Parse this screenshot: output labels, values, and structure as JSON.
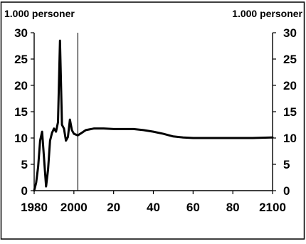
{
  "chart_data": {
    "type": "line",
    "title": "",
    "y_unit_left": "1.000 personer",
    "y_unit_right": "1.000 personer",
    "xlabel": "",
    "ylabel": "",
    "xlim": [
      1980,
      2100
    ],
    "ylim": [
      0,
      30
    ],
    "x_ticks": [
      1980,
      2000,
      2020,
      2040,
      2060,
      2080,
      2100
    ],
    "x_tick_labels": [
      "1980",
      "2000",
      "20",
      "40",
      "60",
      "80",
      "2100"
    ],
    "y_ticks": [
      0,
      5,
      10,
      15,
      20,
      25,
      30
    ],
    "y_tick_labels": [
      "0",
      "5",
      "10",
      "15",
      "20",
      "25",
      "30"
    ],
    "reference_line_x": 2002,
    "grid": false,
    "legend": "none",
    "colors": {
      "line": "#000000",
      "background": "#ffffff"
    },
    "series": [
      {
        "values": [
          [
            1980,
            0
          ],
          [
            1981,
            1.5
          ],
          [
            1982,
            4.5
          ],
          [
            1983,
            9.5
          ],
          [
            1984,
            11.2
          ],
          [
            1985,
            6
          ],
          [
            1986,
            0.8
          ],
          [
            1987,
            4
          ],
          [
            1988,
            9.5
          ],
          [
            1989,
            11
          ],
          [
            1990,
            11.8
          ],
          [
            1991,
            11.2
          ],
          [
            1992,
            13
          ],
          [
            1993,
            28.5
          ],
          [
            1994,
            12.5
          ],
          [
            1995,
            11.8
          ],
          [
            1996,
            9.5
          ],
          [
            1997,
            10.2
          ],
          [
            1998,
            13.5
          ],
          [
            1999,
            11.5
          ],
          [
            2000,
            10.8
          ],
          [
            2002,
            10.5
          ],
          [
            2004,
            11
          ],
          [
            2006,
            11.5
          ],
          [
            2010,
            11.8
          ],
          [
            2015,
            11.8
          ],
          [
            2020,
            11.7
          ],
          [
            2025,
            11.7
          ],
          [
            2030,
            11.7
          ],
          [
            2035,
            11.5
          ],
          [
            2040,
            11.2
          ],
          [
            2045,
            10.8
          ],
          [
            2050,
            10.3
          ],
          [
            2055,
            10.1
          ],
          [
            2060,
            10.0
          ],
          [
            2070,
            10.0
          ],
          [
            2080,
            10.0
          ],
          [
            2090,
            10.0
          ],
          [
            2100,
            10.1
          ]
        ]
      }
    ]
  }
}
